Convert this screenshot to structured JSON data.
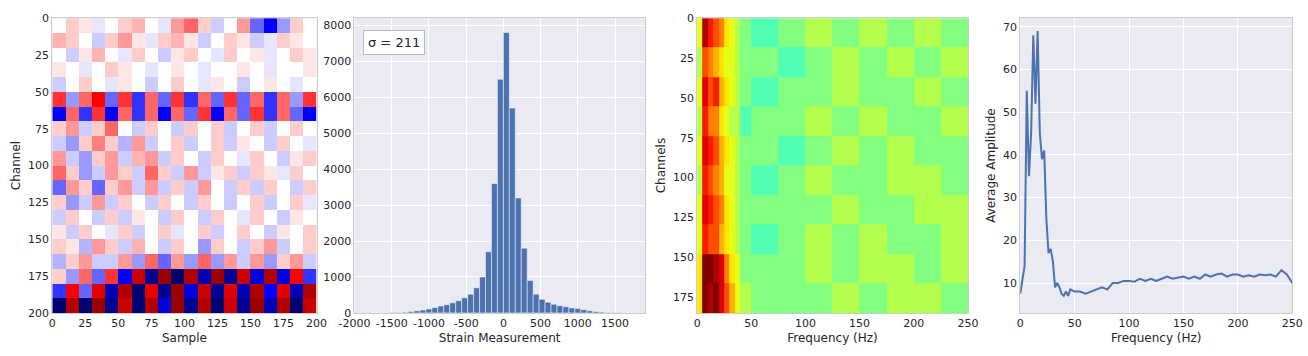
{
  "chart_data": [
    {
      "type": "heatmap",
      "color": "seismic",
      "grid": true,
      "x_label": "Sample",
      "y_label": "Channel",
      "xlim": [
        0,
        200
      ],
      "ylim": [
        200,
        0
      ],
      "xticks": [
        0,
        25,
        50,
        75,
        100,
        125,
        150,
        175,
        200
      ],
      "yticks": [
        0,
        25,
        50,
        75,
        100,
        125,
        150,
        175,
        200
      ],
      "zlim": [
        -1000,
        1000
      ],
      "x_bins": [
        0,
        10,
        20,
        30,
        40,
        50,
        60,
        70,
        80,
        90,
        100,
        110,
        120,
        130,
        140,
        150,
        160,
        170,
        180,
        190,
        200
      ],
      "y_bins": [
        0,
        10,
        20,
        30,
        40,
        50,
        60,
        70,
        80,
        90,
        100,
        110,
        120,
        130,
        140,
        150,
        160,
        170,
        180,
        190,
        200
      ],
      "z": [
        [
          0,
          100,
          50,
          -50,
          0,
          100,
          150,
          0,
          -50,
          200,
          300,
          100,
          -100,
          0,
          200,
          -300,
          -500,
          -200,
          100,
          0
        ],
        [
          150,
          100,
          0,
          -100,
          100,
          200,
          50,
          -50,
          100,
          150,
          50,
          -100,
          0,
          100,
          50,
          -100,
          -50,
          100,
          50,
          0
        ],
        [
          0,
          -100,
          50,
          150,
          0,
          -50,
          100,
          0,
          -100,
          50,
          100,
          0,
          -50,
          100,
          0,
          50,
          -50,
          0,
          100,
          50
        ],
        [
          50,
          0,
          -50,
          0,
          100,
          50,
          0,
          -50,
          0,
          50,
          0,
          -50,
          0,
          0,
          50,
          0,
          -50,
          0,
          0,
          50
        ],
        [
          -100,
          0,
          100,
          0,
          -50,
          50,
          0,
          -100,
          0,
          100,
          0,
          -50,
          50,
          0,
          -100,
          0,
          50,
          0,
          -50,
          0
        ],
        [
          400,
          -200,
          300,
          500,
          -300,
          400,
          -400,
          300,
          -300,
          400,
          -400,
          300,
          -300,
          400,
          -300,
          300,
          -400,
          300,
          -200,
          400
        ],
        [
          -500,
          300,
          -400,
          400,
          -500,
          300,
          -400,
          300,
          -500,
          300,
          -300,
          400,
          -500,
          300,
          -300,
          400,
          -400,
          300,
          -300,
          -500
        ],
        [
          100,
          200,
          -100,
          100,
          300,
          0,
          -100,
          100,
          0,
          -100,
          100,
          0,
          100,
          -100,
          0,
          100,
          -100,
          0,
          100,
          0
        ],
        [
          -100,
          -200,
          100,
          250,
          100,
          -150,
          200,
          -100,
          0,
          100,
          -100,
          0,
          100,
          -100,
          50,
          0,
          -100,
          100,
          0,
          -50
        ],
        [
          200,
          -100,
          -200,
          100,
          200,
          -100,
          150,
          200,
          -100,
          100,
          0,
          -100,
          100,
          0,
          -50,
          100,
          0,
          -100,
          50,
          100
        ],
        [
          300,
          100,
          -200,
          -100,
          200,
          100,
          -100,
          300,
          100,
          -100,
          200,
          -100,
          50,
          100,
          -100,
          100,
          50,
          -50,
          100,
          0
        ],
        [
          -300,
          200,
          100,
          -300,
          100,
          200,
          -100,
          200,
          -100,
          100,
          -100,
          200,
          0,
          -100,
          100,
          -100,
          100,
          0,
          -100,
          100
        ],
        [
          100,
          -200,
          -100,
          200,
          -100,
          100,
          0,
          -100,
          100,
          0,
          -100,
          100,
          0,
          -100,
          0,
          100,
          -100,
          0,
          100,
          -50
        ],
        [
          -100,
          100,
          0,
          -100,
          100,
          -100,
          50,
          0,
          -100,
          100,
          0,
          -100,
          100,
          0,
          -50,
          100,
          0,
          -100,
          50,
          0
        ],
        [
          50,
          -100,
          100,
          0,
          -50,
          100,
          -100,
          0,
          100,
          -50,
          0,
          100,
          -100,
          0,
          100,
          0,
          -100,
          50,
          0,
          100
        ],
        [
          100,
          50,
          -150,
          200,
          100,
          -100,
          150,
          0,
          -100,
          100,
          0,
          -200,
          100,
          0,
          -100,
          100,
          200,
          -100,
          0,
          100
        ],
        [
          -150,
          100,
          200,
          -100,
          -100,
          200,
          -200,
          300,
          -300,
          200,
          -200,
          300,
          -200,
          200,
          -100,
          200,
          -200,
          100,
          200,
          -100
        ],
        [
          100,
          -200,
          300,
          -300,
          400,
          -500,
          700,
          -800,
          900,
          -900,
          800,
          -700,
          900,
          -800,
          700,
          -600,
          800,
          -600,
          500,
          -400
        ],
        [
          -400,
          500,
          -300,
          600,
          -700,
          800,
          -900,
          600,
          -800,
          900,
          -600,
          700,
          -800,
          600,
          -700,
          800,
          -500,
          600,
          -700,
          800
        ],
        [
          -900,
          800,
          -900,
          900,
          -800,
          700,
          -900,
          800,
          -600,
          900,
          -800,
          800,
          -900,
          700,
          -800,
          900,
          -700,
          800,
          -900,
          700
        ]
      ]
    },
    {
      "type": "histogram",
      "color": "#4c72b0",
      "grid": true,
      "x_label": "Strain Measurement",
      "annotation": "σ = 211",
      "xlim": [
        -2000,
        1900
      ],
      "ylim": [
        0,
        8200
      ],
      "xticks": [
        -2000,
        -1500,
        -1000,
        -500,
        0,
        500,
        1000,
        1500
      ],
      "yticks": [
        0,
        1000,
        2000,
        3000,
        4000,
        5000,
        6000,
        7000,
        8000
      ],
      "bins": [
        -1600,
        -1520,
        -1440,
        -1360,
        -1280,
        -1200,
        -1120,
        -1040,
        -960,
        -880,
        -800,
        -720,
        -640,
        -560,
        -480,
        -400,
        -320,
        -240,
        -160,
        -80,
        0,
        80,
        160,
        240,
        320,
        400,
        480,
        560,
        640,
        720,
        800,
        880,
        960,
        1040,
        1120,
        1200,
        1280,
        1360,
        1440,
        1520,
        1600
      ],
      "values": [
        5,
        10,
        15,
        20,
        40,
        60,
        80,
        110,
        150,
        190,
        230,
        280,
        340,
        420,
        520,
        700,
        1000,
        1700,
        3600,
        6500,
        7800,
        5700,
        3200,
        1800,
        900,
        520,
        380,
        300,
        240,
        200,
        170,
        140,
        120,
        90,
        60,
        40,
        25,
        15,
        10,
        5
      ]
    },
    {
      "type": "heatmap",
      "color": "jet",
      "grid": true,
      "x_label": "Frequency (Hz)",
      "y_label": "Channels",
      "xlim": [
        0,
        250
      ],
      "ylim": [
        185,
        0
      ],
      "xticks": [
        0,
        50,
        100,
        150,
        200,
        250
      ],
      "yticks": [
        0,
        25,
        50,
        75,
        100,
        125,
        150,
        175
      ],
      "zlim": [
        0,
        20
      ],
      "x_bins": [
        0,
        5,
        10,
        15,
        20,
        25,
        30,
        35,
        40,
        50,
        75,
        100,
        125,
        150,
        175,
        200,
        225,
        250
      ],
      "y_bins": [
        0,
        18.5,
        37,
        55.5,
        74,
        92.5,
        111,
        129.5,
        148,
        166.5,
        185
      ],
      "z": [
        [
          12,
          19,
          17,
          16,
          15,
          13,
          12,
          11,
          10,
          9,
          10,
          11,
          10,
          11,
          10,
          11,
          10
        ],
        [
          11,
          16,
          15,
          14,
          13,
          12,
          12,
          11,
          10,
          10,
          9,
          10,
          11,
          10,
          11,
          10,
          11
        ],
        [
          12,
          18,
          16,
          17,
          14,
          13,
          12,
          11,
          10,
          9,
          10,
          10,
          11,
          10,
          10,
          11,
          10
        ],
        [
          11,
          17,
          15,
          15,
          13,
          12,
          11,
          11,
          9,
          10,
          10,
          11,
          10,
          11,
          10,
          10,
          11
        ],
        [
          12,
          18,
          17,
          16,
          14,
          13,
          12,
          11,
          10,
          10,
          9,
          10,
          11,
          10,
          11,
          10,
          10
        ],
        [
          11,
          17,
          16,
          15,
          14,
          12,
          12,
          11,
          10,
          9,
          10,
          11,
          10,
          10,
          11,
          11,
          10
        ],
        [
          12,
          18,
          17,
          16,
          15,
          13,
          12,
          11,
          10,
          10,
          10,
          10,
          11,
          10,
          10,
          11,
          11
        ],
        [
          12,
          17,
          16,
          16,
          14,
          13,
          12,
          11,
          10,
          9,
          10,
          11,
          10,
          11,
          10,
          10,
          11
        ],
        [
          13,
          20,
          20,
          19,
          18,
          15,
          13,
          12,
          10,
          10,
          10,
          11,
          10,
          11,
          11,
          10,
          11
        ],
        [
          13,
          20,
          19,
          20,
          18,
          16,
          14,
          12,
          11,
          10,
          10,
          10,
          11,
          10,
          11,
          11,
          10
        ]
      ]
    },
    {
      "type": "line",
      "color": "#4c72b0",
      "grid": true,
      "x_label": "Frequency (Hz)",
      "y_label": "Average Amplitude",
      "xlim": [
        0,
        250
      ],
      "ylim": [
        3,
        72
      ],
      "xticks": [
        0,
        50,
        100,
        150,
        200,
        250
      ],
      "yticks": [
        10,
        20,
        30,
        40,
        50,
        60,
        70
      ],
      "x": [
        0,
        4,
        6,
        8,
        10,
        12,
        14,
        16,
        18,
        20,
        22,
        24,
        26,
        28,
        30,
        32,
        34,
        36,
        38,
        40,
        42,
        44,
        46,
        50,
        55,
        60,
        65,
        70,
        75,
        80,
        85,
        90,
        95,
        100,
        105,
        110,
        115,
        120,
        125,
        130,
        135,
        140,
        145,
        150,
        155,
        160,
        165,
        170,
        175,
        180,
        185,
        190,
        195,
        200,
        205,
        210,
        215,
        220,
        225,
        230,
        235,
        240,
        245,
        250
      ],
      "values": [
        7.5,
        14,
        55,
        35,
        45,
        68,
        52,
        69,
        45,
        39,
        41,
        25,
        17,
        18,
        15,
        9,
        10,
        9,
        7.5,
        7,
        8,
        7,
        8.5,
        8,
        8,
        7.5,
        8,
        8.5,
        9,
        8.5,
        10,
        10,
        10.5,
        10.5,
        10.3,
        11,
        10.5,
        11,
        10.5,
        11,
        11.5,
        11,
        11.2,
        11.5,
        11,
        11.5,
        11,
        12,
        11.5,
        12,
        12.2,
        11.5,
        12,
        12,
        11.5,
        11.8,
        11.5,
        12,
        11.8,
        12,
        11.5,
        13,
        12,
        10
      ]
    }
  ]
}
